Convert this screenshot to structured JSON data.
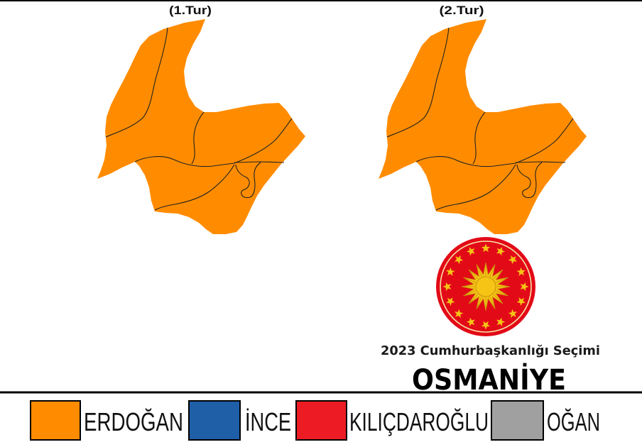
{
  "rounds": [
    {
      "label": "(1.Tur)",
      "district_fill": "#FF8C00"
    },
    {
      "label": "(2.Tur)",
      "district_fill": "#FF8C00"
    }
  ],
  "map": {
    "boundary_color": "#222222"
  },
  "seal": {
    "icon": "presidential-seal-icon",
    "disc_color": "#E30A17",
    "emblem_color": "#F6C415",
    "star_count": 16,
    "sun_ray_count": 16
  },
  "election_title": "2023 Cumhurbaşkanlığı Seçimi",
  "province": "OSMANİYE",
  "legend": [
    {
      "label": "ERDOĞAN",
      "color": "#FF8C00"
    },
    {
      "label": "İNCE",
      "color": "#1F5FA8"
    },
    {
      "label": "KILIÇDAROĞLU",
      "color": "#ED1C24"
    },
    {
      "label": "OĞAN",
      "color": "#A0A0A0"
    }
  ]
}
